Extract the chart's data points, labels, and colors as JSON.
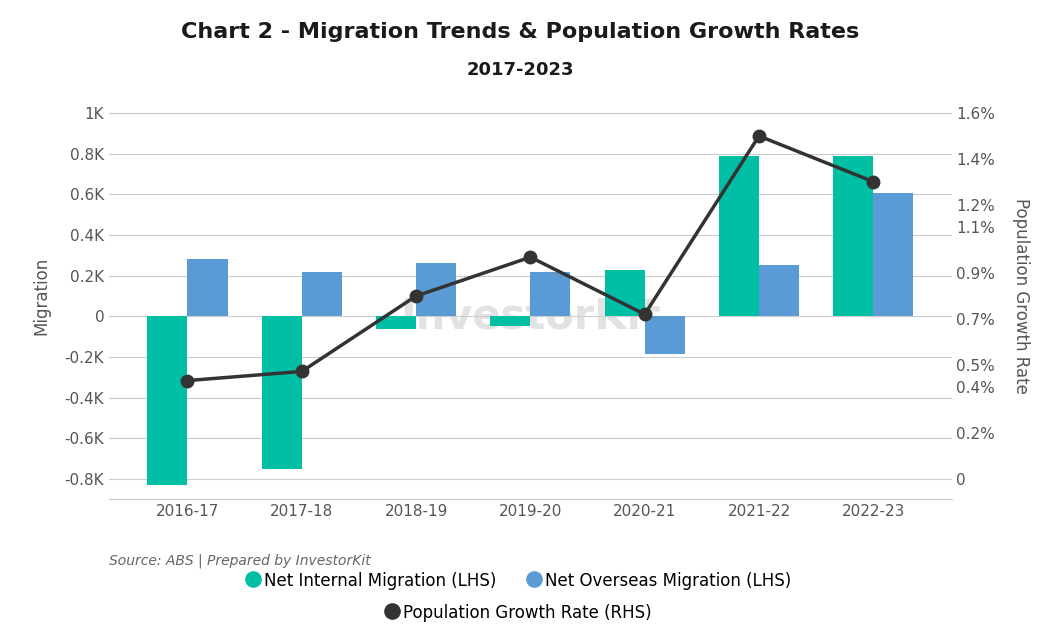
{
  "title_line1": "Chart 2 - Migration Trends & Population Growth Rates",
  "title_line2": "2017-2023",
  "categories": [
    "2016-17",
    "2017-18",
    "2018-19",
    "2019-20",
    "2020-21",
    "2021-22",
    "2022-23"
  ],
  "net_internal_migration": [
    -830,
    -750,
    -60,
    -50,
    230,
    790,
    790
  ],
  "net_overseas_migration": [
    280,
    220,
    260,
    220,
    -185,
    255,
    605
  ],
  "population_growth_rate": [
    0.43,
    0.47,
    0.8,
    0.97,
    0.72,
    1.5,
    1.3
  ],
  "bar_width": 0.35,
  "internal_color": "#00BFA5",
  "overseas_color": "#5B9BD5",
  "line_color": "#333333",
  "lhs_ylim": [
    -900,
    1100
  ],
  "lhs_yticks": [
    -800,
    -600,
    -400,
    -200,
    0,
    200,
    400,
    600,
    800,
    1000
  ],
  "lhs_yticklabels": [
    "-0.8K",
    "-0.6K",
    "-0.4K",
    "-0.2K",
    "0",
    "0.2K",
    "0.4K",
    "0.6K",
    "0.8K",
    "1K"
  ],
  "rhs_ylim_min": 0,
  "rhs_ylim_max": 2.0533,
  "rhs_yticks": [
    0.0,
    0.2,
    0.4,
    0.5,
    0.7,
    0.9,
    1.1,
    1.2,
    1.4,
    1.6
  ],
  "rhs_yticklabels": [
    "0",
    "0.2%",
    "0.4%",
    "0.5%",
    "0.7%",
    "0.9%",
    "1.1%",
    "1.2%",
    "1.4%",
    "1.6%"
  ],
  "ylabel_left": "Migration",
  "ylabel_right": "Population Growth Rate",
  "source_text": "Source: ABS | Prepared by InvestorKit",
  "legend_internal": "Net Internal Migration (LHS)",
  "legend_overseas": "Net Overseas Migration (LHS)",
  "legend_growth": "Population Growth Rate (RHS)",
  "background_color": "#ffffff",
  "grid_color": "#cccccc",
  "watermark": "InvestorKit",
  "tick_color": "#555555",
  "label_color": "#555555"
}
